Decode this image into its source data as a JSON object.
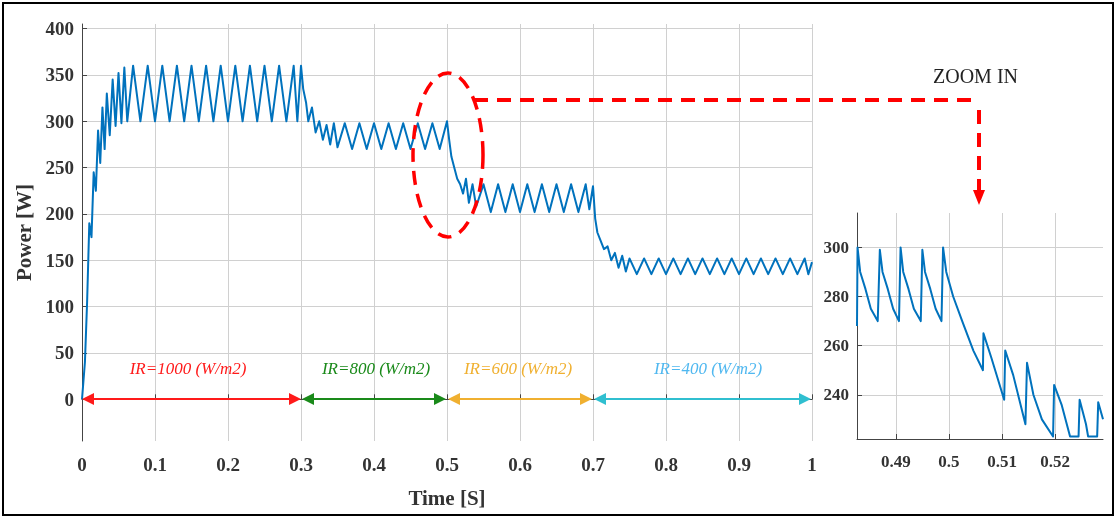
{
  "chart_data": [
    {
      "type": "line",
      "xlabel": "Time [S]",
      "ylabel": "Power [W]",
      "xlim": [
        0,
        1
      ],
      "xticks": [
        0,
        0.1,
        0.2,
        0.3,
        0.4,
        0.5,
        0.6,
        0.7,
        0.8,
        0.9,
        1
      ],
      "ylim": [
        -45,
        405
      ],
      "yticks": [
        0,
        50,
        100,
        150,
        200,
        250,
        300,
        350,
        400
      ],
      "grid": true,
      "series": [
        {
          "color": "#0072bd",
          "x": [
            0,
            0.004,
            0.007,
            0.01,
            0.013,
            0.016,
            0.019,
            0.022,
            0.025,
            0.028,
            0.031,
            0.034,
            0.038,
            0.042,
            0.046,
            0.05,
            0.054,
            0.058,
            0.062,
            0.07,
            0.08,
            0.09,
            0.1,
            0.11,
            0.12,
            0.13,
            0.14,
            0.15,
            0.16,
            0.17,
            0.18,
            0.19,
            0.2,
            0.21,
            0.22,
            0.23,
            0.24,
            0.25,
            0.26,
            0.27,
            0.28,
            0.29,
            0.295,
            0.3,
            0.303,
            0.307,
            0.31,
            0.315,
            0.32,
            0.325,
            0.33,
            0.335,
            0.34,
            0.345,
            0.35,
            0.36,
            0.37,
            0.38,
            0.39,
            0.4,
            0.41,
            0.42,
            0.43,
            0.44,
            0.45,
            0.46,
            0.47,
            0.48,
            0.49,
            0.5,
            0.503,
            0.506,
            0.51,
            0.514,
            0.518,
            0.522,
            0.526,
            0.53,
            0.535,
            0.54,
            0.55,
            0.56,
            0.57,
            0.58,
            0.59,
            0.6,
            0.61,
            0.62,
            0.63,
            0.64,
            0.65,
            0.66,
            0.67,
            0.68,
            0.69,
            0.695,
            0.7,
            0.703,
            0.706,
            0.71,
            0.715,
            0.72,
            0.725,
            0.73,
            0.735,
            0.74,
            0.745,
            0.75,
            0.76,
            0.77,
            0.78,
            0.79,
            0.8,
            0.81,
            0.82,
            0.83,
            0.84,
            0.85,
            0.86,
            0.87,
            0.88,
            0.89,
            0.9,
            0.91,
            0.92,
            0.93,
            0.94,
            0.95,
            0.96,
            0.97,
            0.98,
            0.99,
            0.995,
            1
          ],
          "values": [
            0,
            40,
            105,
            190,
            175,
            245,
            225,
            290,
            255,
            315,
            270,
            330,
            285,
            345,
            295,
            352,
            298,
            358,
            300,
            360,
            300,
            360,
            300,
            360,
            300,
            360,
            300,
            360,
            300,
            360,
            300,
            360,
            300,
            360,
            300,
            360,
            300,
            360,
            300,
            360,
            300,
            360,
            300,
            360,
            335,
            320,
            300,
            315,
            288,
            300,
            280,
            296,
            275,
            298,
            272,
            298,
            270,
            298,
            270,
            298,
            270,
            298,
            270,
            298,
            270,
            298,
            270,
            298,
            270,
            300,
            280,
            262,
            250,
            238,
            232,
            222,
            238,
            212,
            232,
            208,
            232,
            202,
            232,
            202,
            232,
            202,
            232,
            202,
            232,
            202,
            232,
            202,
            232,
            202,
            232,
            205,
            230,
            195,
            180,
            172,
            162,
            165,
            150,
            158,
            142,
            155,
            138,
            152,
            135,
            152,
            135,
            152,
            135,
            152,
            135,
            152,
            135,
            152,
            135,
            152,
            135,
            152,
            135,
            152,
            135,
            152,
            135,
            152,
            135,
            152,
            135,
            152,
            135,
            148
          ]
        }
      ],
      "annotations": [
        "IR=1000 (W/m2)",
        "IR=800 (W/m2)",
        "IR=600 (W/m2)",
        "IR=400 (W/m2)"
      ]
    },
    {
      "type": "line",
      "title": "ZOOM IN",
      "xlim": [
        0.4827,
        0.529
      ],
      "xticks": [
        0.49,
        0.5,
        0.51,
        0.52
      ],
      "ylim": [
        222,
        314
      ],
      "yticks": [
        240,
        260,
        280,
        300
      ],
      "grid": true,
      "series": [
        {
          "color": "#0072bd",
          "x": [
            0.4827,
            0.4828,
            0.4833,
            0.4843,
            0.4853,
            0.4866,
            0.487,
            0.4875,
            0.4885,
            0.4895,
            0.4906,
            0.4909,
            0.4914,
            0.4924,
            0.4934,
            0.4947,
            0.495,
            0.4955,
            0.4965,
            0.4975,
            0.4986,
            0.4989,
            0.4995,
            0.5008,
            0.5025,
            0.5046,
            0.5064,
            0.5065,
            0.508,
            0.5104,
            0.5106,
            0.5121,
            0.5144,
            0.5147,
            0.5159,
            0.5175,
            0.5196,
            0.5198,
            0.5212,
            0.5228,
            0.5244,
            0.5246,
            0.5258,
            0.5262,
            0.5279,
            0.5281,
            0.529
          ],
          "values": [
            268,
            300,
            290,
            283,
            275,
            270,
            299,
            290,
            283,
            275,
            270,
            300,
            290,
            283,
            275,
            270,
            299,
            290,
            283,
            275,
            270,
            300,
            290,
            280,
            270,
            258,
            250,
            265,
            255,
            238,
            258,
            248,
            228,
            253,
            240,
            230,
            223,
            244,
            236,
            223,
            223,
            238,
            228,
            223,
            223,
            237,
            230
          ]
        }
      ]
    }
  ]
}
